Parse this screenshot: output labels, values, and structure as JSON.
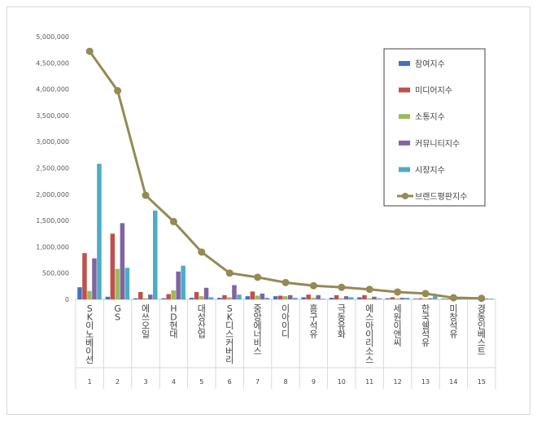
{
  "chart_data": {
    "type": "bar",
    "title": "",
    "xlabel": "",
    "ylabel": "",
    "ylim": [
      0,
      5000000
    ],
    "yticks": [
      "0",
      "500,000",
      "1,000,000",
      "1,500,000",
      "2,000,000",
      "2,500,000",
      "3,000,000",
      "3,500,000",
      "4,000,000",
      "4,500,000",
      "5,000,000"
    ],
    "ytick_values": [
      0,
      500000,
      1000000,
      1500000,
      2000000,
      2500000,
      3000000,
      3500000,
      4000000,
      4500000,
      5000000
    ],
    "grid": false,
    "legend_position": "top-right",
    "categories": [
      "SK이노베이션",
      "GS",
      "에쓰오일",
      "HD현대",
      "대성산업",
      "SK디스커버리",
      "중앙에너비스",
      "이아이디",
      "흥구석유",
      "극동유화",
      "에스아이리소스",
      "세원이앤씨",
      "한국쉘석유",
      "미창석유",
      "경동인베스트"
    ],
    "ranks": [
      "1",
      "2",
      "3",
      "4",
      "5",
      "6",
      "7",
      "8",
      "9",
      "10",
      "11",
      "12",
      "13",
      "14",
      "15"
    ],
    "series": [
      {
        "name": "참여지수",
        "type": "bar",
        "color": "#4472c4",
        "values": [
          230000,
          50000,
          20000,
          20000,
          30000,
          30000,
          60000,
          60000,
          40000,
          30000,
          40000,
          20000,
          10000,
          10000,
          10000
        ]
      },
      {
        "name": "미디어지수",
        "type": "bar",
        "color": "#c0504d",
        "values": [
          880000,
          1250000,
          140000,
          100000,
          140000,
          80000,
          150000,
          70000,
          90000,
          80000,
          80000,
          40000,
          20000,
          10000,
          10000
        ]
      },
      {
        "name": "소통지수",
        "type": "bar",
        "color": "#9bbb59",
        "values": [
          160000,
          580000,
          20000,
          170000,
          60000,
          40000,
          70000,
          60000,
          30000,
          20000,
          20000,
          20000,
          10000,
          10000,
          10000
        ]
      },
      {
        "name": "커뮤니티지수",
        "type": "bar",
        "color": "#8064a2",
        "values": [
          780000,
          1450000,
          90000,
          530000,
          220000,
          270000,
          110000,
          80000,
          80000,
          60000,
          50000,
          30000,
          20000,
          10000,
          10000
        ]
      },
      {
        "name": "시장지수",
        "type": "bar",
        "color": "#4bacc6",
        "values": [
          2580000,
          600000,
          1690000,
          640000,
          40000,
          90000,
          30000,
          30000,
          10000,
          40000,
          20000,
          30000,
          60000,
          10000,
          10000
        ]
      },
      {
        "name": "브랜드평판지수",
        "type": "line",
        "color": "#948a54",
        "values": [
          4720000,
          3970000,
          1980000,
          1480000,
          900000,
          500000,
          420000,
          320000,
          260000,
          230000,
          190000,
          140000,
          110000,
          30000,
          20000
        ]
      }
    ]
  },
  "colors": {
    "axis": "#bfbfbf",
    "text": "#404040",
    "border": "#d9d9d9"
  }
}
